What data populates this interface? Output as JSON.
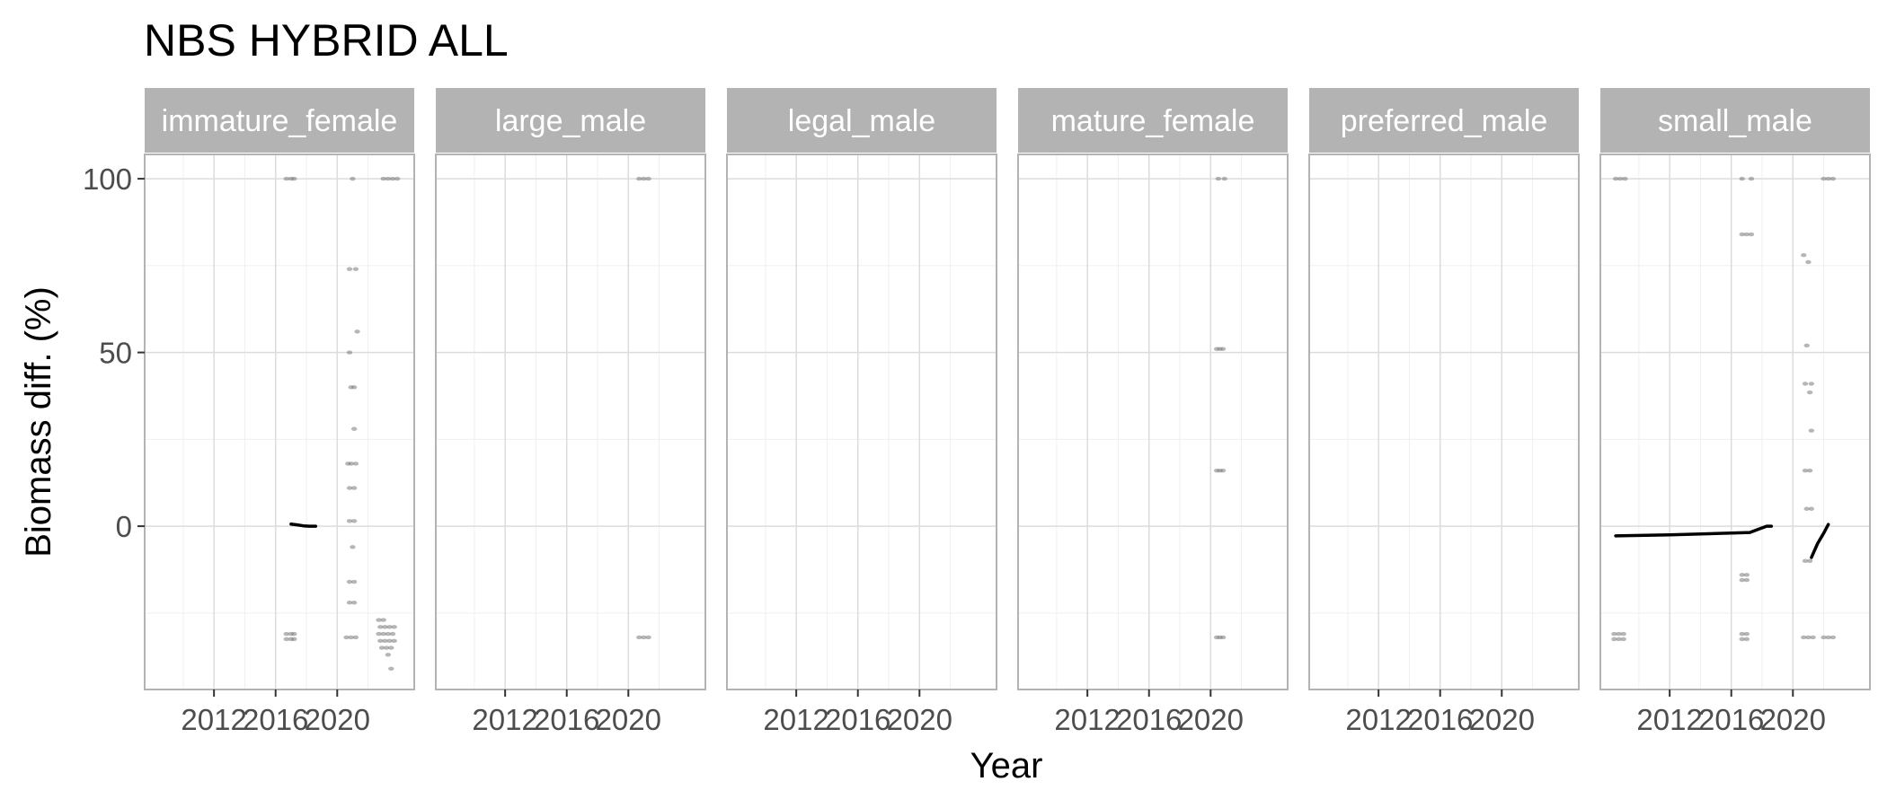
{
  "chart_data": {
    "type": "scatter",
    "title": "NBS HYBRID ALL",
    "xlabel": "Year",
    "ylabel": "Biomass diff. (%)",
    "x_ticks": [
      2012,
      2016,
      2020
    ],
    "x_range": [
      2007.5,
      2025.0
    ],
    "y_ticks": [
      0,
      50,
      100
    ],
    "y_range": [
      -47,
      107
    ],
    "grid": true,
    "colors": {
      "strip": "#b3b3b3",
      "panel_border": "#b3b3b3",
      "grid_major": "#dcdcdc",
      "grid_minor": "#efefef",
      "points": "#7a7a7a",
      "line": "#000000"
    },
    "panels": [
      {
        "name": "immature_female",
        "points": [
          {
            "x": 2016.7,
            "y": 100
          },
          {
            "x": 2017.0,
            "y": 100
          },
          {
            "x": 2017.2,
            "y": 100
          },
          {
            "x": 2016.7,
            "y": -31
          },
          {
            "x": 2017.0,
            "y": -31
          },
          {
            "x": 2017.2,
            "y": -31
          },
          {
            "x": 2016.7,
            "y": -32.5
          },
          {
            "x": 2017.0,
            "y": -32.5
          },
          {
            "x": 2017.2,
            "y": -32.5
          },
          {
            "x": 2021.0,
            "y": 100
          },
          {
            "x": 2023.0,
            "y": 100
          },
          {
            "x": 2023.3,
            "y": 100
          },
          {
            "x": 2023.6,
            "y": 100
          },
          {
            "x": 2023.9,
            "y": 100
          },
          {
            "x": 2020.8,
            "y": 74
          },
          {
            "x": 2021.2,
            "y": 74
          },
          {
            "x": 2021.3,
            "y": 56
          },
          {
            "x": 2020.8,
            "y": 50
          },
          {
            "x": 2020.9,
            "y": 40
          },
          {
            "x": 2021.1,
            "y": 40
          },
          {
            "x": 2021.1,
            "y": 28
          },
          {
            "x": 2020.7,
            "y": 18
          },
          {
            "x": 2020.9,
            "y": 18
          },
          {
            "x": 2021.2,
            "y": 18
          },
          {
            "x": 2020.8,
            "y": 11
          },
          {
            "x": 2021.1,
            "y": 11
          },
          {
            "x": 2020.8,
            "y": 1.5
          },
          {
            "x": 2021.1,
            "y": 1.5
          },
          {
            "x": 2021.0,
            "y": -6
          },
          {
            "x": 2020.8,
            "y": -16
          },
          {
            "x": 2021.1,
            "y": -16
          },
          {
            "x": 2020.8,
            "y": -22
          },
          {
            "x": 2021.1,
            "y": -22
          },
          {
            "x": 2020.6,
            "y": -32
          },
          {
            "x": 2020.9,
            "y": -32
          },
          {
            "x": 2021.2,
            "y": -32
          },
          {
            "x": 2022.7,
            "y": -27
          },
          {
            "x": 2023.0,
            "y": -27
          },
          {
            "x": 2022.8,
            "y": -29
          },
          {
            "x": 2023.1,
            "y": -29
          },
          {
            "x": 2023.4,
            "y": -29
          },
          {
            "x": 2023.7,
            "y": -29
          },
          {
            "x": 2022.7,
            "y": -31
          },
          {
            "x": 2023.0,
            "y": -31
          },
          {
            "x": 2023.3,
            "y": -31
          },
          {
            "x": 2023.6,
            "y": -31
          },
          {
            "x": 2022.8,
            "y": -33
          },
          {
            "x": 2023.1,
            "y": -33
          },
          {
            "x": 2023.4,
            "y": -33
          },
          {
            "x": 2023.7,
            "y": -33
          },
          {
            "x": 2022.9,
            "y": -35
          },
          {
            "x": 2023.2,
            "y": -35
          },
          {
            "x": 2023.5,
            "y": -35
          },
          {
            "x": 2023.3,
            "y": -37
          },
          {
            "x": 2023.5,
            "y": -41
          }
        ],
        "lines": [
          [
            {
              "x": 2017.0,
              "y": 0.6
            },
            {
              "x": 2017.4,
              "y": 0.4
            },
            {
              "x": 2017.8,
              "y": 0.1
            },
            {
              "x": 2018.2,
              "y": 0.0
            },
            {
              "x": 2018.6,
              "y": 0.0
            }
          ]
        ]
      },
      {
        "name": "large_male",
        "points": [
          {
            "x": 2020.7,
            "y": 100
          },
          {
            "x": 2021.0,
            "y": 100
          },
          {
            "x": 2021.3,
            "y": 100
          },
          {
            "x": 2020.7,
            "y": -32
          },
          {
            "x": 2021.0,
            "y": -32
          },
          {
            "x": 2021.3,
            "y": -32
          }
        ],
        "lines": []
      },
      {
        "name": "legal_male",
        "points": [],
        "lines": []
      },
      {
        "name": "mature_female",
        "points": [
          {
            "x": 2020.5,
            "y": 100
          },
          {
            "x": 2020.9,
            "y": 100
          },
          {
            "x": 2020.4,
            "y": 51
          },
          {
            "x": 2020.6,
            "y": 51
          },
          {
            "x": 2020.8,
            "y": 51
          },
          {
            "x": 2020.4,
            "y": 16
          },
          {
            "x": 2020.6,
            "y": 16
          },
          {
            "x": 2020.8,
            "y": 16
          },
          {
            "x": 2020.4,
            "y": -32
          },
          {
            "x": 2020.6,
            "y": -32
          },
          {
            "x": 2020.8,
            "y": -32
          }
        ],
        "lines": []
      },
      {
        "name": "preferred_male",
        "points": [],
        "lines": []
      },
      {
        "name": "small_male",
        "points": [
          {
            "x": 2008.5,
            "y": 100
          },
          {
            "x": 2008.8,
            "y": 100
          },
          {
            "x": 2009.1,
            "y": 100
          },
          {
            "x": 2008.4,
            "y": -31
          },
          {
            "x": 2008.7,
            "y": -31
          },
          {
            "x": 2009.0,
            "y": -31
          },
          {
            "x": 2008.4,
            "y": -32.5
          },
          {
            "x": 2008.7,
            "y": -32.5
          },
          {
            "x": 2009.0,
            "y": -32.5
          },
          {
            "x": 2016.7,
            "y": 100
          },
          {
            "x": 2017.3,
            "y": 100
          },
          {
            "x": 2016.7,
            "y": 84
          },
          {
            "x": 2017.0,
            "y": 84
          },
          {
            "x": 2017.3,
            "y": 84
          },
          {
            "x": 2016.7,
            "y": -14
          },
          {
            "x": 2017.0,
            "y": -14
          },
          {
            "x": 2016.7,
            "y": -15.5
          },
          {
            "x": 2017.0,
            "y": -15.5
          },
          {
            "x": 2016.7,
            "y": -31
          },
          {
            "x": 2017.0,
            "y": -31
          },
          {
            "x": 2016.7,
            "y": -32.5
          },
          {
            "x": 2017.0,
            "y": -32.5
          },
          {
            "x": 2020.7,
            "y": 78
          },
          {
            "x": 2021.0,
            "y": 76
          },
          {
            "x": 2020.9,
            "y": 52
          },
          {
            "x": 2020.8,
            "y": 41
          },
          {
            "x": 2021.2,
            "y": 41
          },
          {
            "x": 2021.1,
            "y": 38.5
          },
          {
            "x": 2021.2,
            "y": 27.5
          },
          {
            "x": 2020.8,
            "y": 16
          },
          {
            "x": 2021.1,
            "y": 16
          },
          {
            "x": 2020.9,
            "y": 5
          },
          {
            "x": 2021.2,
            "y": 5
          },
          {
            "x": 2020.8,
            "y": -10
          },
          {
            "x": 2021.1,
            "y": -10
          },
          {
            "x": 2020.7,
            "y": -32
          },
          {
            "x": 2021.0,
            "y": -32
          },
          {
            "x": 2021.3,
            "y": -32
          },
          {
            "x": 2022.0,
            "y": 100
          },
          {
            "x": 2022.3,
            "y": 100
          },
          {
            "x": 2022.6,
            "y": 100
          },
          {
            "x": 2022.0,
            "y": -32
          },
          {
            "x": 2022.3,
            "y": -32
          },
          {
            "x": 2022.6,
            "y": -32
          }
        ],
        "lines": [
          [
            {
              "x": 2008.5,
              "y": -2.8
            },
            {
              "x": 2012.0,
              "y": -2.5
            },
            {
              "x": 2016.0,
              "y": -2.0
            },
            {
              "x": 2017.2,
              "y": -1.8
            },
            {
              "x": 2017.8,
              "y": -0.8
            },
            {
              "x": 2018.3,
              "y": 0.0
            },
            {
              "x": 2018.6,
              "y": 0.0
            }
          ],
          [
            {
              "x": 2021.2,
              "y": -9
            },
            {
              "x": 2021.6,
              "y": -5
            },
            {
              "x": 2022.0,
              "y": -2
            },
            {
              "x": 2022.3,
              "y": 0.5
            }
          ]
        ]
      }
    ]
  }
}
